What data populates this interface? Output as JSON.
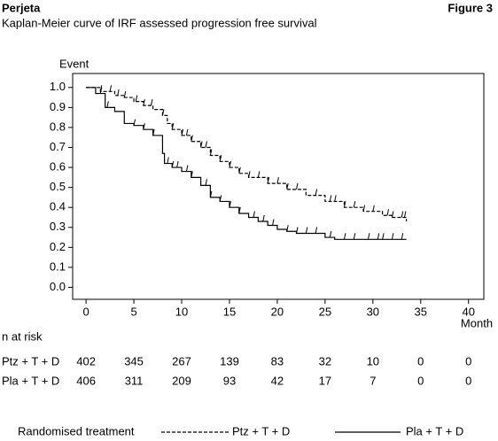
{
  "chart_data": {
    "type": "line",
    "drawstyle": "steps-post",
    "header_left": "Perjeta",
    "header_right": "Figure 3",
    "title": "Kaplan-Meier curve of IRF assessed progression free survival",
    "ylabel": "Event",
    "xlabel": "Month",
    "xlim": [
      -1.4,
      41.6
    ],
    "ylim": [
      -0.06,
      1.07
    ],
    "xticks": [
      0,
      5,
      10,
      15,
      20,
      25,
      30,
      35,
      40
    ],
    "yticks": [
      {
        "value": 1,
        "label": "1.0"
      },
      0.9,
      0.8,
      0.7,
      0.6,
      0.5,
      0.4,
      0.3,
      0.2,
      0.1,
      {
        "value": 0,
        "label": "0.0"
      }
    ],
    "series": [
      {
        "name": "Ptz + T + D",
        "color": "#000000",
        "linestyle": "dashed",
        "x": [
          0,
          1.5,
          3,
          4,
          5,
          6,
          7,
          8,
          8.5,
          9,
          10,
          11,
          12,
          13,
          14,
          15,
          16,
          17,
          19,
          21,
          23,
          25,
          27,
          29,
          31,
          32,
          33.5
        ],
        "values": [
          1.0,
          0.98,
          0.96,
          0.95,
          0.93,
          0.91,
          0.89,
          0.86,
          0.82,
          0.79,
          0.76,
          0.73,
          0.7,
          0.66,
          0.63,
          0.6,
          0.57,
          0.55,
          0.52,
          0.49,
          0.46,
          0.43,
          0.4,
          0.38,
          0.36,
          0.35,
          0.33
        ],
        "censor_x": [
          1.5,
          2.5,
          3.3,
          4,
          5.2,
          6,
          6.8,
          8,
          9,
          10,
          10.5,
          11,
          12,
          12.5,
          13,
          14,
          15,
          16,
          17,
          18,
          19,
          20,
          21,
          22,
          24,
          25.5,
          26,
          27,
          28,
          29,
          30,
          31.5,
          32,
          33,
          33.3
        ]
      },
      {
        "name": "Pla + T + D",
        "color": "#000000",
        "linestyle": "solid",
        "x": [
          0,
          1,
          2,
          3,
          4,
          5,
          6,
          7,
          8,
          8.2,
          9,
          10,
          11,
          12,
          13,
          14,
          15,
          16,
          17,
          18,
          19,
          20,
          21,
          22,
          25,
          26,
          33.5
        ],
        "values": [
          1.0,
          0.97,
          0.9,
          0.88,
          0.82,
          0.81,
          0.79,
          0.76,
          0.67,
          0.62,
          0.6,
          0.58,
          0.55,
          0.51,
          0.45,
          0.43,
          0.4,
          0.37,
          0.35,
          0.33,
          0.31,
          0.29,
          0.28,
          0.27,
          0.25,
          0.24,
          0.24
        ],
        "censor_x": [
          1.5,
          2.2,
          5,
          6,
          7,
          8.5,
          9,
          9.5,
          10.5,
          11,
          12.5,
          13,
          14,
          15,
          16,
          17.5,
          18.5,
          19.5,
          21,
          22,
          23,
          24,
          25.5,
          27,
          28,
          29.5,
          30.5,
          31,
          32,
          33
        ]
      }
    ],
    "risk_table": {
      "label": "n at risk",
      "rows": [
        {
          "name": "Ptz + T + D",
          "values": [
            402,
            345,
            267,
            139,
            83,
            32,
            10,
            0,
            0
          ]
        },
        {
          "name": "Pla + T + D",
          "values": [
            406,
            311,
            209,
            93,
            42,
            17,
            7,
            0,
            0
          ]
        }
      ]
    },
    "legend_title": "Randomised treatment"
  }
}
